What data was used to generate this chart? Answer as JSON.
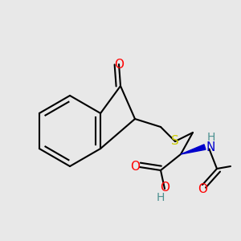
{
  "background_color": "#e8e8e8",
  "bond_color": "#000000",
  "bond_width": 1.5,
  "fig_width": 3.0,
  "fig_height": 3.0,
  "dpi": 100,
  "colors": {
    "O": "#ff0000",
    "S": "#cccc00",
    "N": "#0000cc",
    "H": "#4a9090",
    "C": "#000000"
  }
}
